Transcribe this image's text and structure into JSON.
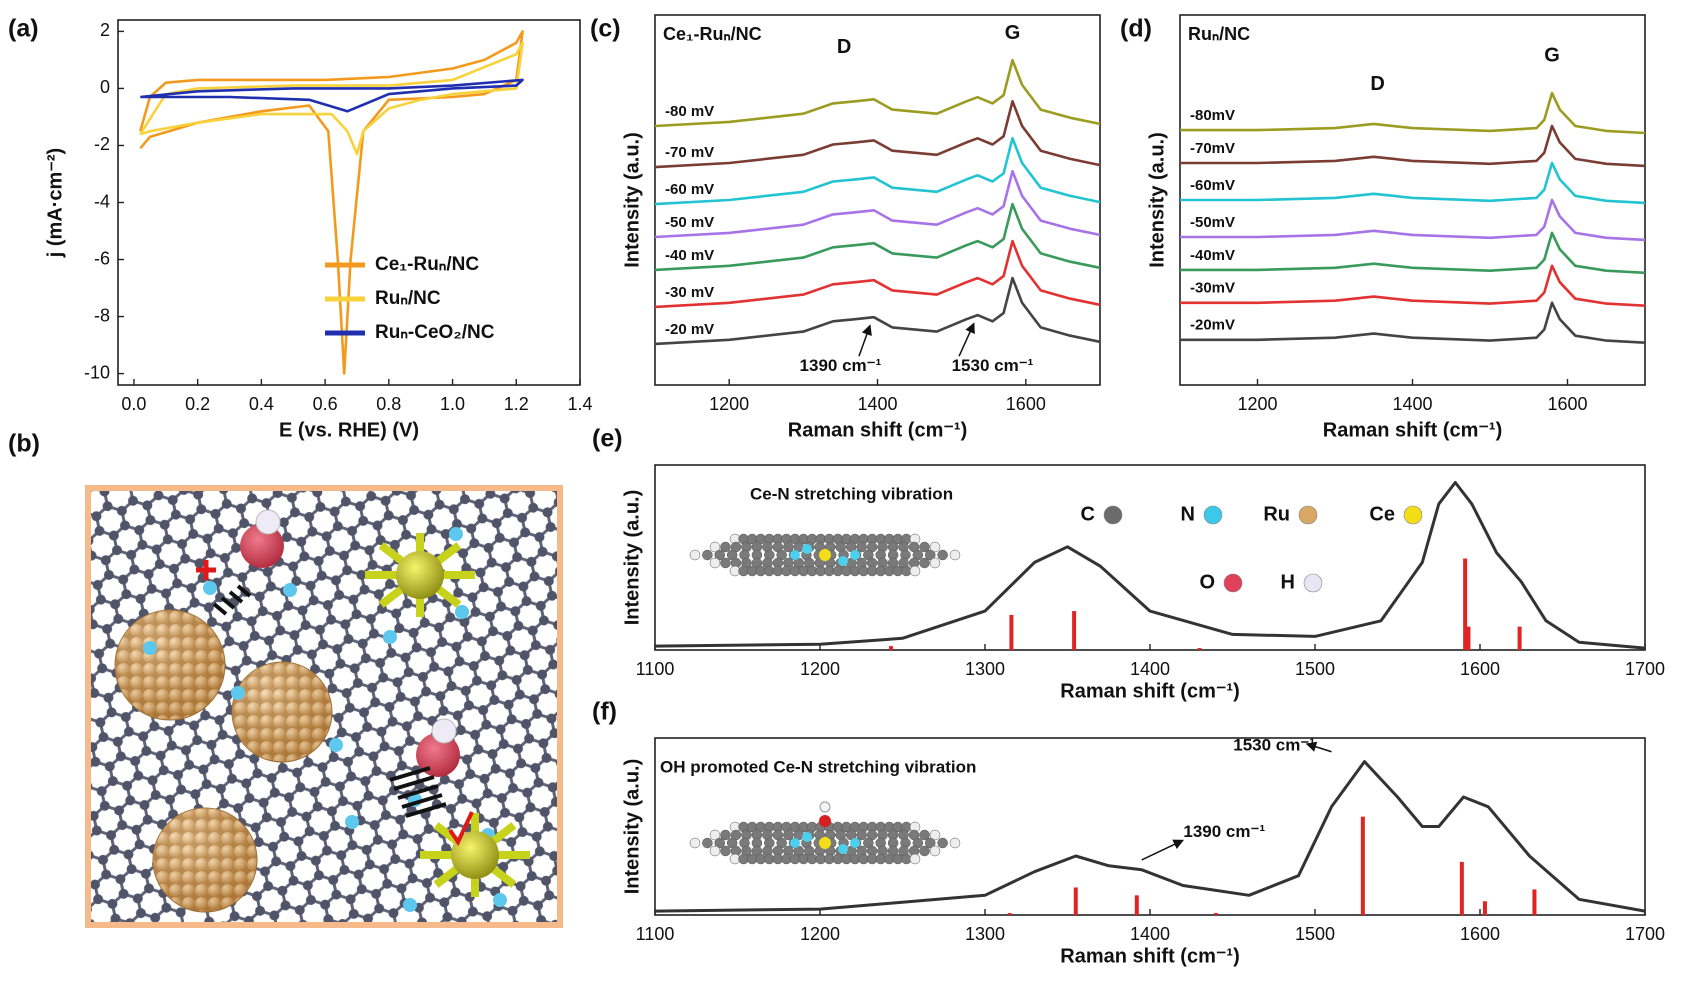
{
  "chart_data": [
    {
      "type": "line",
      "panel": "(a)",
      "xlabel": "E (vs. RHE) (V)",
      "ylabel": "j (mA·cm⁻²)",
      "xlim": [
        -0.05,
        1.4
      ],
      "ylim": [
        -10.4,
        2.4
      ],
      "xticks": [
        {
          "value": 0,
          "label": "0.0"
        },
        0.2,
        0.4,
        0.6,
        0.8,
        {
          "value": 1,
          "label": "1.0"
        },
        1.2,
        1.4
      ],
      "yticks": [
        2,
        0,
        -2,
        -4,
        -6,
        -8,
        -10
      ],
      "legend": "lower right",
      "series": [
        {
          "name": "Ce₁-Ruₙ/NC",
          "color": "#f39a1e",
          "x": [
            0.02,
            0.05,
            0.1,
            0.2,
            0.4,
            0.6,
            0.8,
            1.0,
            1.1,
            1.2,
            1.22,
            1.2,
            1.1,
            1.0,
            0.8,
            0.72,
            0.68,
            0.66,
            0.64,
            0.61,
            0.55,
            0.4,
            0.2,
            0.05,
            0.02
          ],
          "values": [
            -1.5,
            -0.3,
            0.2,
            0.3,
            0.3,
            0.3,
            0.4,
            0.7,
            1.0,
            1.6,
            2.0,
            0.3,
            -0.2,
            -0.3,
            -0.4,
            -1.5,
            -6,
            -10,
            -6,
            -1.5,
            -0.6,
            -0.8,
            -1.2,
            -1.7,
            -2.1
          ]
        },
        {
          "name": "Ruₙ/NC",
          "color": "#f7d23a",
          "x": [
            0.02,
            0.1,
            0.2,
            0.5,
            0.8,
            1.0,
            1.2,
            1.22,
            1.2,
            1.0,
            0.9,
            0.8,
            0.72,
            0.7,
            0.67,
            0.62,
            0.4,
            0.2,
            0.05,
            0.02
          ],
          "values": [
            -1.6,
            -0.2,
            0.0,
            0.1,
            0.1,
            0.3,
            1.2,
            1.6,
            0.0,
            -0.2,
            -0.4,
            -0.7,
            -1.5,
            -2.3,
            -1.5,
            -0.9,
            -0.9,
            -1.2,
            -1.5,
            -1.6
          ]
        },
        {
          "name": "Ruₙ-CeO₂/NC",
          "color": "#1f2fb0",
          "x": [
            0.02,
            0.2,
            0.5,
            0.8,
            1.0,
            1.22,
            1.2,
            1.0,
            0.8,
            0.67,
            0.55,
            0.3,
            0.1,
            0.02
          ],
          "values": [
            -0.3,
            -0.1,
            0.0,
            0.0,
            0.1,
            0.3,
            0.1,
            0.0,
            -0.2,
            -0.8,
            -0.4,
            -0.3,
            -0.3,
            -0.3
          ]
        }
      ]
    },
    {
      "type": "line",
      "panel": "(c)",
      "title": "Ce₁-Ruₙ/NC",
      "xlabel": "Raman shift (cm⁻¹)",
      "ylabel": "Intensity (a.u.)",
      "xlim": [
        1100,
        1700
      ],
      "ylim": [
        -1,
        8
      ],
      "xticks": [
        1200,
        1400,
        1600
      ],
      "legend": "inline",
      "x": [
        1100,
        1200,
        1300,
        1340,
        1370,
        1395,
        1420,
        1480,
        1520,
        1535,
        1555,
        1570,
        1582,
        1595,
        1620,
        1660,
        1700
      ],
      "series": [
        {
          "name": "-80 mV",
          "color": "#9c9c22",
          "values": [
            5.3,
            5.4,
            5.6,
            5.85,
            5.9,
            5.95,
            5.7,
            5.6,
            5.9,
            6,
            5.85,
            6.05,
            6.9,
            6.3,
            5.7,
            5.5,
            5.35
          ]
        },
        {
          "name": "-70 mV",
          "color": "#7b3c33",
          "values": [
            4.3,
            4.4,
            4.6,
            4.85,
            4.9,
            4.95,
            4.7,
            4.6,
            4.9,
            5,
            4.85,
            5.05,
            5.9,
            5.3,
            4.7,
            4.5,
            4.35
          ]
        },
        {
          "name": "-60 mV",
          "color": "#22c4d2",
          "values": [
            3.4,
            3.5,
            3.7,
            3.95,
            4,
            4.05,
            3.8,
            3.7,
            4,
            4.1,
            3.95,
            4.15,
            5,
            4.4,
            3.8,
            3.6,
            3.45
          ]
        },
        {
          "name": "-50 mV",
          "color": "#a773e6",
          "values": [
            2.6,
            2.7,
            2.9,
            3.15,
            3.2,
            3.25,
            3,
            2.9,
            3.2,
            3.3,
            3.15,
            3.35,
            4.2,
            3.6,
            3,
            2.8,
            2.65
          ]
        },
        {
          "name": "-40 mV",
          "color": "#3a9a5c",
          "values": [
            1.8,
            1.9,
            2.1,
            2.35,
            2.4,
            2.45,
            2.2,
            2.1,
            2.4,
            2.5,
            2.35,
            2.55,
            3.4,
            2.8,
            2.2,
            2,
            1.85
          ]
        },
        {
          "name": "-30 mV",
          "color": "#e23232",
          "values": [
            0.9,
            1,
            1.2,
            1.45,
            1.5,
            1.55,
            1.3,
            1.2,
            1.5,
            1.6,
            1.45,
            1.65,
            2.5,
            1.9,
            1.3,
            1.1,
            0.95
          ]
        },
        {
          "name": "-20 mV",
          "color": "#444444",
          "values": [
            0,
            0.1,
            0.3,
            0.55,
            0.6,
            0.65,
            0.4,
            0.3,
            0.6,
            0.7,
            0.55,
            0.75,
            1.6,
            1,
            0.4,
            0.2,
            0.05
          ]
        }
      ],
      "annotations": [
        "D",
        "G",
        "1390 cm⁻¹",
        "1530 cm⁻¹"
      ]
    },
    {
      "type": "line",
      "panel": "(d)",
      "title": "Ruₙ/NC",
      "xlabel": "Raman shift (cm⁻¹)",
      "ylabel": "Intensity (a.u.)",
      "xlim": [
        1100,
        1700
      ],
      "ylim": [
        -1,
        8
      ],
      "xticks": [
        1200,
        1400,
        1600
      ],
      "legend": "inline",
      "x": [
        1100,
        1200,
        1300,
        1350,
        1400,
        1500,
        1560,
        1570,
        1580,
        1590,
        1610,
        1650,
        1700
      ],
      "series": [
        {
          "name": "-80mV",
          "color": "#9c9c22",
          "values": [
            5.2,
            5.2,
            5.25,
            5.35,
            5.25,
            5.18,
            5.25,
            5.45,
            6.1,
            5.7,
            5.3,
            5.18,
            5.13
          ]
        },
        {
          "name": "-70mV",
          "color": "#7b3c33",
          "values": [
            4.4,
            4.4,
            4.45,
            4.55,
            4.45,
            4.38,
            4.45,
            4.65,
            5.3,
            4.9,
            4.5,
            4.38,
            4.33
          ]
        },
        {
          "name": "-60mV",
          "color": "#22c4d2",
          "values": [
            3.5,
            3.5,
            3.55,
            3.65,
            3.55,
            3.48,
            3.55,
            3.75,
            4.4,
            4,
            3.6,
            3.48,
            3.43
          ]
        },
        {
          "name": "-50mV",
          "color": "#a773e6",
          "values": [
            2.6,
            2.6,
            2.65,
            2.75,
            2.65,
            2.58,
            2.65,
            2.85,
            3.5,
            3.1,
            2.7,
            2.58,
            2.53
          ]
        },
        {
          "name": "-40mV",
          "color": "#3a9a5c",
          "values": [
            1.8,
            1.8,
            1.85,
            1.95,
            1.85,
            1.78,
            1.85,
            2.05,
            2.7,
            2.3,
            1.9,
            1.78,
            1.73
          ]
        },
        {
          "name": "-30mV",
          "color": "#e23232",
          "values": [
            1,
            1,
            1.05,
            1.15,
            1.05,
            0.98,
            1.05,
            1.25,
            1.9,
            1.5,
            1.1,
            0.98,
            0.93
          ]
        },
        {
          "name": "-20mV",
          "color": "#444444",
          "values": [
            0.1,
            0.1,
            0.15,
            0.25,
            0.15,
            0.08,
            0.15,
            0.35,
            1,
            0.6,
            0.2,
            0.08,
            0.03
          ]
        }
      ],
      "annotations": [
        "D",
        "G"
      ]
    },
    {
      "type": "line",
      "panel": "(e)",
      "xlabel": "Raman shift (cm⁻¹)",
      "ylabel": "Intensity (a.u.)",
      "xlim": [
        1100,
        1700
      ],
      "ylim": [
        0,
        0.95
      ],
      "xticks": [
        1100,
        1200,
        1300,
        1400,
        1500,
        1600,
        1700
      ],
      "x": [
        1100,
        1200,
        1250,
        1300,
        1330,
        1350,
        1370,
        1400,
        1450,
        1500,
        1540,
        1565,
        1575,
        1585,
        1595,
        1610,
        1625,
        1640,
        1660,
        1700
      ],
      "series": [
        {
          "color": "#333333",
          "values": [
            0.02,
            0.03,
            0.06,
            0.2,
            0.45,
            0.53,
            0.43,
            0.2,
            0.08,
            0.07,
            0.15,
            0.45,
            0.75,
            0.86,
            0.75,
            0.5,
            0.35,
            0.15,
            0.04,
            0.01
          ]
        }
      ],
      "sticks": {
        "color": "#e02424",
        "x": [
          1243,
          1316,
          1354,
          1430,
          1591,
          1593,
          1624
        ],
        "values": [
          0.02,
          0.18,
          0.2,
          0.01,
          0.47,
          0.12,
          0.12
        ]
      },
      "annotations": [
        "Ce-N stretching vibration"
      ],
      "atom_legend": [
        {
          "label": "C",
          "color": "#6b6b6b"
        },
        {
          "label": "N",
          "color": "#3cc8e8"
        },
        {
          "label": "Ru",
          "color": "#d9a766"
        },
        {
          "label": "Ce",
          "color": "#f2dd16"
        },
        {
          "label": "O",
          "color": "#e0405a"
        },
        {
          "label": "H",
          "color": "#e8e6f4"
        }
      ]
    },
    {
      "type": "line",
      "panel": "(f)",
      "xlabel": "Raman shift (cm⁻¹)",
      "ylabel": "Intensity (a.u.)",
      "xlim": [
        1100,
        1700
      ],
      "ylim": [
        0,
        0.9
      ],
      "xticks": [
        1100,
        1200,
        1300,
        1400,
        1500,
        1600,
        1700
      ],
      "x": [
        1100,
        1200,
        1300,
        1330,
        1355,
        1375,
        1395,
        1420,
        1460,
        1490,
        1510,
        1530,
        1550,
        1565,
        1575,
        1590,
        1605,
        1630,
        1660,
        1700
      ],
      "series": [
        {
          "color": "#333333",
          "values": [
            0.02,
            0.03,
            0.1,
            0.22,
            0.3,
            0.25,
            0.23,
            0.15,
            0.1,
            0.2,
            0.55,
            0.78,
            0.6,
            0.45,
            0.45,
            0.6,
            0.55,
            0.3,
            0.08,
            0.02
          ]
        }
      ],
      "sticks": {
        "color": "#e02424",
        "x": [
          1315,
          1355,
          1392,
          1440,
          1529,
          1589,
          1603,
          1633
        ],
        "values": [
          0.01,
          0.14,
          0.1,
          0.01,
          0.5,
          0.27,
          0.07,
          0.13
        ]
      },
      "annotations": [
        "OH promoted Ce-N stretching vibration",
        "1530 cm⁻¹",
        "1390 cm⁻¹"
      ]
    }
  ],
  "illustration": {
    "panel": "(b)"
  }
}
